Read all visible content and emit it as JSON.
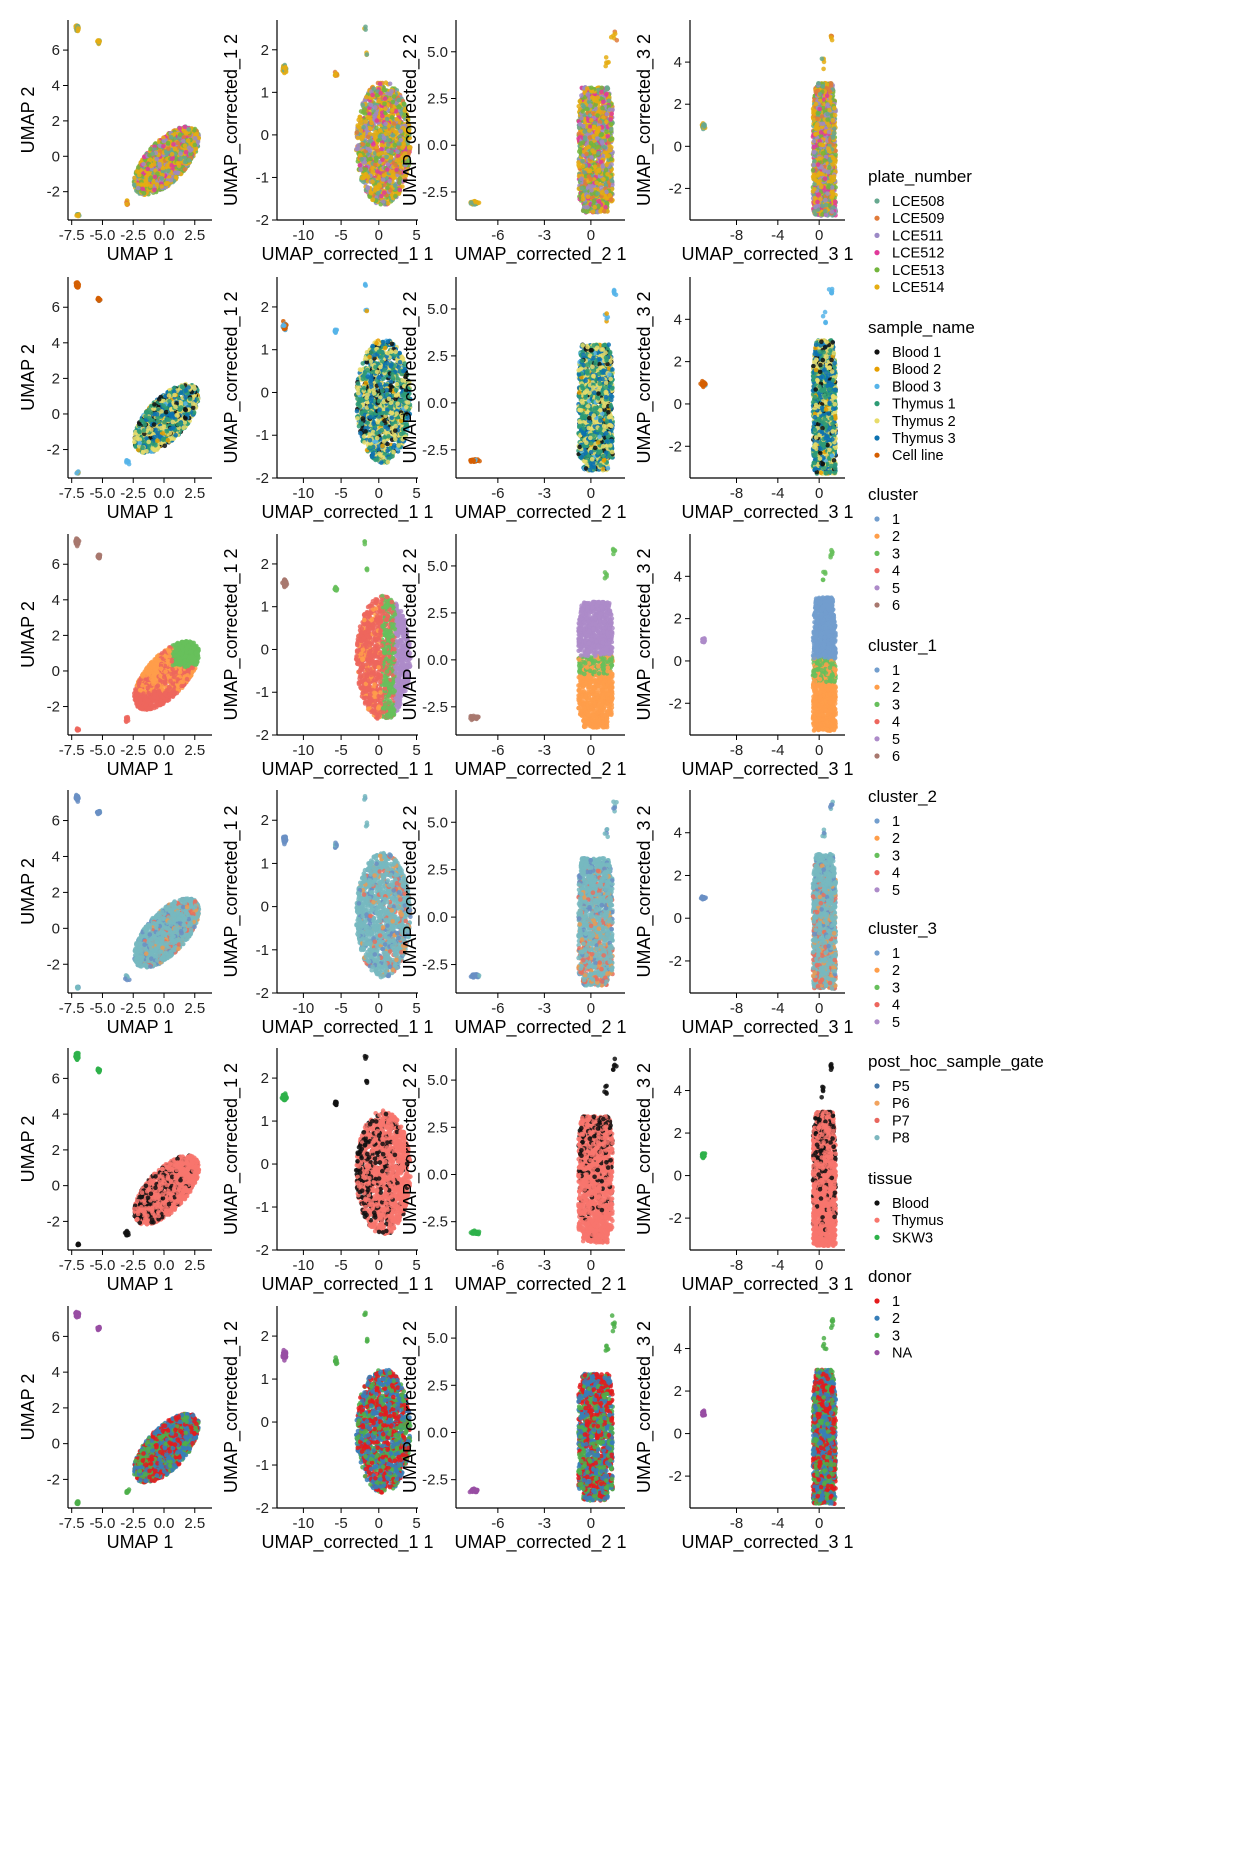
{
  "chart_data": {
    "type": "scatter",
    "panels": [
      {
        "id": "umap",
        "xlabel": "UMAP 1",
        "ylabel": "UMAP 2",
        "xlim": [
          -7.8,
          3.9
        ],
        "ylim": [
          -3.6,
          7.7
        ],
        "xticks": [
          -7.5,
          -5.0,
          -2.5,
          0.0,
          2.5
        ],
        "xtick_labels": [
          "-7.5",
          "-5.0",
          "-2.5",
          "0.0",
          "2.5"
        ],
        "yticks": [
          -2,
          0,
          2,
          4,
          6
        ],
        "ytick_labels": [
          "-2",
          "0",
          "2",
          "4",
          "6"
        ]
      },
      {
        "id": "corrected_1",
        "xlabel": "UMAP_corrected_1 1",
        "ylabel": "UMAP_corrected_1 2",
        "xlim": [
          -13.5,
          5.2
        ],
        "ylim": [
          -2.0,
          2.7
        ],
        "xticks": [
          -10,
          -5,
          0,
          5
        ],
        "xtick_labels": [
          "-10",
          "-5",
          "0",
          "5"
        ],
        "yticks": [
          -2,
          -1,
          0,
          1,
          2
        ],
        "ytick_labels": [
          "-2",
          "-1",
          "0",
          "1",
          "2"
        ]
      },
      {
        "id": "corrected_2",
        "xlabel": "UMAP_corrected_2 1",
        "ylabel": "UMAP_corrected_2 2",
        "xlim": [
          -8.7,
          2.2
        ],
        "ylim": [
          -4.0,
          6.7
        ],
        "xticks": [
          -6,
          -3,
          0
        ],
        "xtick_labels": [
          "-6",
          "-3",
          "0"
        ],
        "yticks": [
          -2.5,
          0.0,
          2.5,
          5.0
        ],
        "ytick_labels": [
          "-2.5",
          "0.0",
          "2.5",
          "5.0"
        ]
      },
      {
        "id": "corrected_3",
        "xlabel": "UMAP_corrected_3 1",
        "ylabel": "UMAP_corrected_3 2",
        "xlim": [
          -12.5,
          2.5
        ],
        "ylim": [
          -3.5,
          6.0
        ],
        "xticks": [
          -8,
          -4,
          0
        ],
        "xtick_labels": [
          "-8",
          "-4",
          "0"
        ],
        "yticks": [
          -2,
          0,
          2,
          4
        ],
        "ytick_labels": [
          "-2",
          "0",
          "2",
          "4"
        ]
      }
    ],
    "rows": [
      {
        "variable": "plate_number",
        "legends": [
          {
            "title": "plate_number",
            "entries": [
              {
                "label": "LCE508",
                "color": "#66A88F"
              },
              {
                "label": "LCE509",
                "color": "#E17B3A"
              },
              {
                "label": "LCE511",
                "color": "#9C89C6"
              },
              {
                "label": "LCE512",
                "color": "#E0399A"
              },
              {
                "label": "LCE513",
                "color": "#73B53C"
              },
              {
                "label": "LCE514",
                "color": "#E5AD12"
              }
            ]
          }
        ],
        "mix": {
          "main": [
            [
              0,
              0.16
            ],
            [
              1,
              0.07
            ],
            [
              2,
              0.15
            ],
            [
              3,
              0.11
            ],
            [
              4,
              0.17
            ],
            [
              5,
              0.34
            ]
          ],
          "isl": [
            [
              0,
              0.35
            ],
            [
              5,
              0.65
            ]
          ],
          "line": [
            [
              1,
              0.6
            ],
            [
              5,
              0.4
            ]
          ],
          "out": [
            [
              5,
              0.6
            ],
            [
              0,
              0.4
            ]
          ]
        }
      },
      {
        "variable": "sample_name",
        "legends": [
          {
            "title": "sample_name",
            "entries": [
              {
                "label": "Blood 1",
                "color": "#111111"
              },
              {
                "label": "Blood 2",
                "color": "#E69F00"
              },
              {
                "label": "Blood 3",
                "color": "#56B4E9"
              },
              {
                "label": "Thymus 1",
                "color": "#2E9B75"
              },
              {
                "label": "Thymus 2",
                "color": "#E8DC6A"
              },
              {
                "label": "Thymus 3",
                "color": "#0C72B0"
              },
              {
                "label": "Cell line",
                "color": "#D55E00"
              }
            ]
          }
        ],
        "mix": {
          "main": [
            [
              0,
              0.09
            ],
            [
              1,
              0.03
            ],
            [
              2,
              0.02
            ],
            [
              3,
              0.31
            ],
            [
              4,
              0.31
            ],
            [
              5,
              0.24
            ]
          ],
          "isl": [
            [
              6,
              0.8
            ],
            [
              2,
              0.2
            ]
          ],
          "line": [
            [
              2,
              1.0
            ]
          ],
          "out": [
            [
              2,
              0.7
            ],
            [
              1,
              0.3
            ]
          ]
        }
      },
      {
        "variable": "cluster",
        "legends": [
          {
            "title": "cluster",
            "entries": [
              {
                "label": "1",
                "color": "#729ECE"
              },
              {
                "label": "2",
                "color": "#FF9E4A"
              },
              {
                "label": "3",
                "color": "#67BF5C"
              },
              {
                "label": "4",
                "color": "#ED665D"
              },
              {
                "label": "5",
                "color": "#AD8BC9"
              },
              {
                "label": "6",
                "color": "#A8786E"
              }
            ]
          },
          {
            "title": "cluster_1",
            "entries": [
              {
                "label": "1",
                "color": "#729ECE"
              },
              {
                "label": "2",
                "color": "#FF9E4A"
              },
              {
                "label": "3",
                "color": "#67BF5C"
              },
              {
                "label": "4",
                "color": "#ED665D"
              },
              {
                "label": "5",
                "color": "#AD8BC9"
              },
              {
                "label": "6",
                "color": "#A8786E"
              }
            ]
          }
        ]
      },
      {
        "variable": "cluster_2",
        "legends": [
          {
            "title": "cluster_2",
            "entries": [
              {
                "label": "1",
                "color": "#729ECE"
              },
              {
                "label": "2",
                "color": "#FF9E4A"
              },
              {
                "label": "3",
                "color": "#67BF5C"
              },
              {
                "label": "4",
                "color": "#ED665D"
              },
              {
                "label": "5",
                "color": "#AD8BC9"
              }
            ]
          },
          {
            "title": "cluster_3",
            "entries": [
              {
                "label": "1",
                "color": "#729ECE"
              },
              {
                "label": "2",
                "color": "#FF9E4A"
              },
              {
                "label": "3",
                "color": "#67BF5C"
              },
              {
                "label": "4",
                "color": "#ED665D"
              },
              {
                "label": "5",
                "color": "#AD8BC9"
              }
            ]
          }
        ],
        "point_colors": [
          "#77B8C0",
          "#6A8FC4",
          "#E8705E",
          "#E89B55"
        ],
        "mix": {
          "main": [
            [
              0,
              0.74
            ],
            [
              1,
              0.1
            ],
            [
              2,
              0.09
            ],
            [
              3,
              0.07
            ]
          ],
          "isl": [
            [
              1,
              0.9
            ],
            [
              0,
              0.1
            ]
          ],
          "line": [
            [
              1,
              0.5
            ],
            [
              0,
              0.5
            ]
          ],
          "out": [
            [
              0,
              0.6
            ],
            [
              1,
              0.4
            ]
          ]
        }
      },
      {
        "variable": "post_hoc_sample_gate",
        "legends": [
          {
            "title": "post_hoc_sample_gate",
            "entries": [
              {
                "label": "P5",
                "color": "#4477AA"
              },
              {
                "label": "P6",
                "color": "#F2A35E"
              },
              {
                "label": "P7",
                "color": "#E8665E"
              },
              {
                "label": "P8",
                "color": "#7DB7BF"
              }
            ]
          },
          {
            "title": "tissue",
            "entries": [
              {
                "label": "Blood",
                "color": "#111111"
              },
              {
                "label": "Thymus",
                "color": "#F8766D"
              },
              {
                "label": "SKW3",
                "color": "#2EB24A"
              }
            ]
          }
        ],
        "point_colors": [
          "#111111",
          "#F8766D",
          "#2EB24A"
        ],
        "mix": {
          "main": [
            [
              1,
              0.86
            ],
            [
              0,
              0.14
            ]
          ],
          "isl": [
            [
              2,
              1.0
            ]
          ],
          "line": [
            [
              0,
              1.0
            ]
          ],
          "out": [
            [
              0,
              1.0
            ]
          ]
        }
      },
      {
        "variable": "donor",
        "legends": [
          {
            "title": "donor",
            "entries": [
              {
                "label": "1",
                "color": "#E41A1C"
              },
              {
                "label": "2",
                "color": "#377EB8"
              },
              {
                "label": "3",
                "color": "#4DAF4A"
              },
              {
                "label": "NA",
                "color": "#984EA3"
              }
            ]
          }
        ],
        "mix": {
          "main": [
            [
              0,
              0.36
            ],
            [
              1,
              0.36
            ],
            [
              2,
              0.28
            ]
          ],
          "isl": [
            [
              3,
              1.0
            ]
          ],
          "line": [
            [
              2,
              1.0
            ]
          ],
          "out": [
            [
              2,
              1.0
            ]
          ]
        }
      }
    ]
  }
}
